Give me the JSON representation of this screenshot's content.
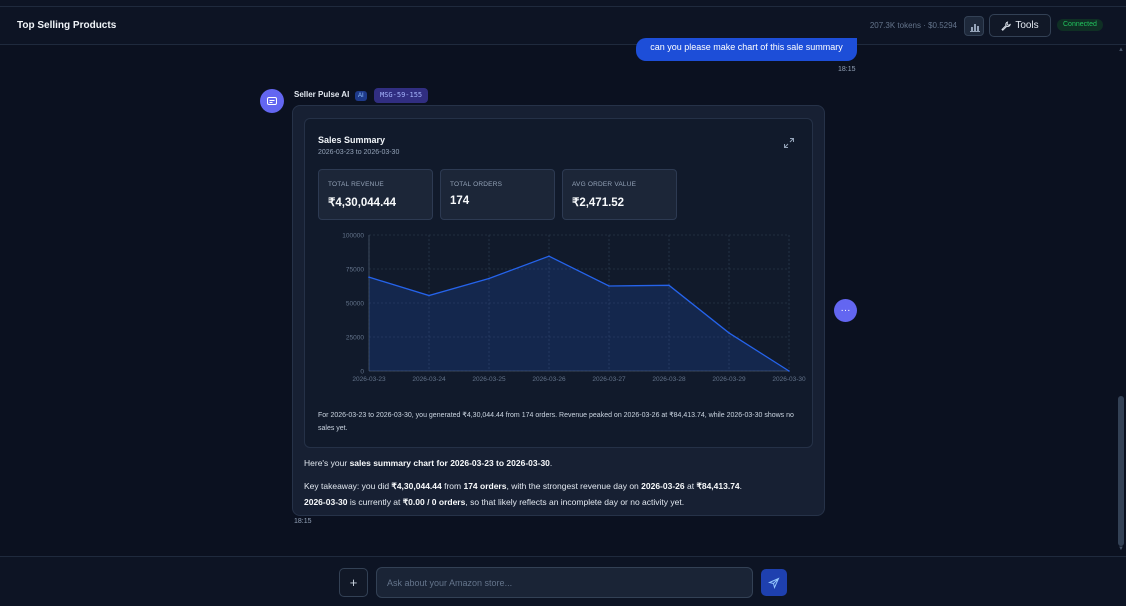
{
  "header": {
    "title": "Top Selling Products",
    "stats": "207.3K tokens · $0.5294",
    "tools_label": "Tools",
    "status": "Connected"
  },
  "user_message": {
    "text": "can you please make chart of this sale summary",
    "time": "18:15"
  },
  "bot": {
    "name": "Seller Pulse AI",
    "badge": "AI",
    "model": "MSG-59-155",
    "time": "18:15"
  },
  "card": {
    "title": "Sales Summary",
    "subtitle": "2026-03-23 to 2026-03-30",
    "kpis": [
      {
        "label": "TOTAL REVENUE",
        "value": "₹4,30,044.44"
      },
      {
        "label": "TOTAL ORDERS",
        "value": "174"
      },
      {
        "label": "AVG ORDER VALUE",
        "value": "₹2,471.52"
      }
    ],
    "summary": "For 2026-03-23 to 2026-03-30, you generated ₹4,30,044.44 from 174 orders. Revenue peaked on 2026-03-26 at ₹84,413.74, while 2026-03-30 shows no sales yet."
  },
  "chart_data": {
    "type": "area",
    "x": [
      "2026-03-23",
      "2026-03-24",
      "2026-03-25",
      "2026-03-26",
      "2026-03-27",
      "2026-03-28",
      "2026-03-29",
      "2026-03-30"
    ],
    "values": [
      69000,
      55500,
      68000,
      84413.74,
      62500,
      63000,
      28000,
      0
    ],
    "yticks": [
      "100000",
      "75000",
      "50000",
      "25000",
      "0"
    ],
    "ylim": [
      0,
      100000
    ],
    "grid": true,
    "color": "#2563eb",
    "title": "",
    "xlabel": "",
    "ylabel": ""
  },
  "message": {
    "p1_pre": "Here's your ",
    "p1_bold": "sales summary chart for 2026-03-23 to 2026-03-30",
    "p1_post": ".",
    "p2_a": "Key takeaway: you did ",
    "p2_b": "₹4,30,044.44",
    "p2_c": " from ",
    "p2_d": "174 orders",
    "p2_e": ", with the strongest revenue day on ",
    "p2_f": "2026-03-26",
    "p2_g": " at ",
    "p2_h": "₹84,413.74",
    "p2_i": ".",
    "p2_j": "2026-03-30",
    "p2_k": " is currently at ",
    "p2_l": "₹0.00 / 0 orders",
    "p2_m": ", so that likely reflects an incomplete day or no activity yet."
  },
  "composer": {
    "placeholder": "Ask about your Amazon store...",
    "attach_label": "+"
  },
  "more_label": "···"
}
